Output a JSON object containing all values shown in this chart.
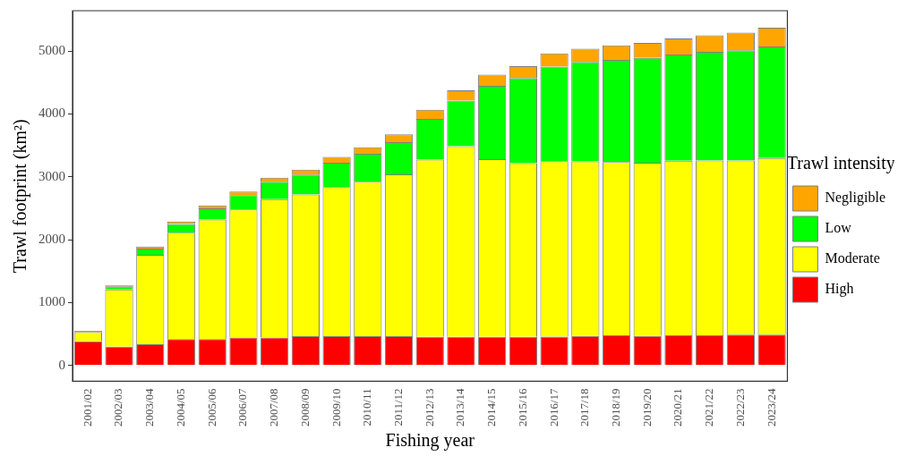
{
  "chart_data": {
    "type": "bar",
    "stacked": true,
    "xlabel": "Fishing year",
    "ylabel": "Trawl footprint (km²)",
    "legend_title": "Trawl intensity",
    "legend": "right",
    "categories": [
      "2001/02",
      "2002/03",
      "2003/04",
      "2004/05",
      "2005/06",
      "2006/07",
      "2007/08",
      "2008/09",
      "2009/10",
      "2010/11",
      "2011/12",
      "2012/13",
      "2013/14",
      "2014/15",
      "2015/16",
      "2016/17",
      "2017/18",
      "2018/19",
      "2019/20",
      "2020/21",
      "2021/22",
      "2022/23",
      "2023/24"
    ],
    "series": [
      {
        "name": "High",
        "color": "#ff0000",
        "values": [
          385,
          300,
          340,
          420,
          420,
          445,
          445,
          465,
          465,
          465,
          465,
          455,
          455,
          455,
          455,
          460,
          470,
          480,
          470,
          480,
          480,
          490,
          490
        ]
      },
      {
        "name": "Moderate",
        "color": "#ffff00",
        "values": [
          150,
          910,
          1420,
          1690,
          1900,
          2035,
          2200,
          2255,
          2370,
          2455,
          2575,
          2820,
          3030,
          2825,
          2760,
          2790,
          2775,
          2755,
          2755,
          2775,
          2780,
          2770,
          2810
        ]
      },
      {
        "name": "Low",
        "color": "#00ff00",
        "values": [
          null,
          50,
          100,
          140,
          180,
          230,
          275,
          315,
          390,
          445,
          510,
          645,
          725,
          1165,
          1355,
          1500,
          1580,
          1625,
          1665,
          1690,
          1725,
          1750,
          1770
        ]
      },
      {
        "name": "Negligible",
        "color": "#ffa500",
        "values": [
          15,
          20,
          30,
          40,
          45,
          55,
          65,
          80,
          90,
          105,
          125,
          145,
          165,
          180,
          190,
          210,
          210,
          230,
          240,
          255,
          265,
          280,
          300
        ]
      }
    ],
    "ylim": [
      -250,
      5640
    ],
    "yticks": [
      0,
      1000,
      2000,
      3000,
      4000,
      5000
    ],
    "grid": false
  }
}
